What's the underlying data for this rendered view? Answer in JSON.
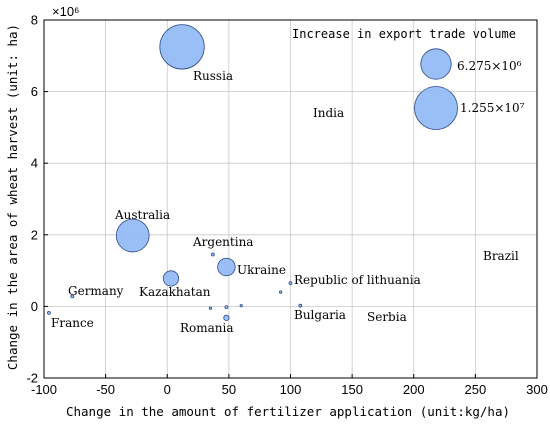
{
  "chart_data": {
    "type": "scatter",
    "subtype": "bubble",
    "xlabel": "Change in the amount of fertilizer application (unit:kg/ha)",
    "ylabel": "Change in the area of wheat harvest (unit: ha)",
    "y_multiplier_label": "×10⁶",
    "xlim": [
      -100,
      300
    ],
    "ylim": [
      -2,
      8
    ],
    "xticks": [
      "-100",
      "-50",
      "0",
      "50",
      "100",
      "150",
      "200",
      "250",
      "300"
    ],
    "yticks": [
      "-2",
      "0",
      "2",
      "4",
      "6",
      "8"
    ],
    "grid": true,
    "legend": {
      "title": "Increase in export trade volume",
      "placement": "top-right",
      "items": [
        {
          "label": "6.275×10⁶",
          "value": 6275000
        },
        {
          "label": "1.255×10⁷",
          "value": 12550000
        }
      ]
    },
    "points": [
      {
        "name": "Russia",
        "x": 12,
        "y": 7.25,
        "size": 13400000
      },
      {
        "name": "India",
        "x": 220,
        "y": 0,
        "size": 0
      },
      {
        "name": "Brazil",
        "x": 270,
        "y": 0,
        "size": 0
      },
      {
        "name": "Australia",
        "x": -28,
        "y": 1.98,
        "size": 7300000
      },
      {
        "name": "Argentina",
        "x": 37,
        "y": 1.45,
        "size": 60000
      },
      {
        "name": "Ukraine",
        "x": 48,
        "y": 1.1,
        "size": 2100000
      },
      {
        "name": "Kazakhatan",
        "x": 3,
        "y": 0.78,
        "size": 1600000
      },
      {
        "name": "Germany",
        "x": -77,
        "y": 0.28,
        "size": 60000
      },
      {
        "name": "Republic of lithuania",
        "x": 100,
        "y": 0.65,
        "size": 60000
      },
      {
        "name": "France",
        "x": -96,
        "y": -0.18,
        "size": 60000
      },
      {
        "name": "Bulgaria",
        "x": 108,
        "y": 0.02,
        "size": 60000
      },
      {
        "name": "Serbia",
        "x": 163,
        "y": 0,
        "size": 0
      },
      {
        "name": "Romania",
        "x": 48,
        "y": -0.32,
        "size": 200000
      },
      {
        "name": "",
        "x": 48,
        "y": -0.02,
        "size": 60000
      },
      {
        "name": "",
        "x": 60,
        "y": 0.02,
        "size": 40000
      },
      {
        "name": "",
        "x": 92,
        "y": 0.4,
        "size": 40000
      },
      {
        "name": "",
        "x": 35,
        "y": -0.05,
        "size": 30000
      }
    ]
  }
}
